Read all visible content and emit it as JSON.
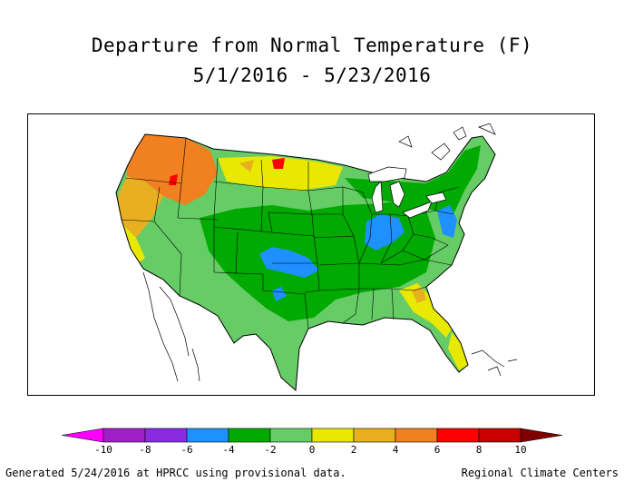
{
  "title": {
    "line1": "Departure from Normal Temperature (F)",
    "line2": "5/1/2016 - 5/23/2016"
  },
  "legend": {
    "bins": [
      {
        "from": -12,
        "to": -10,
        "color": "#ff00ff"
      },
      {
        "from": -10,
        "to": -8,
        "color": "#a020c8"
      },
      {
        "from": -8,
        "to": -6,
        "color": "#8a2be2"
      },
      {
        "from": -6,
        "to": -4,
        "color": "#1e90ff"
      },
      {
        "from": -4,
        "to": -2,
        "color": "#00aa00"
      },
      {
        "from": -2,
        "to": 0,
        "color": "#66cc66"
      },
      {
        "from": 0,
        "to": 2,
        "color": "#e8e800"
      },
      {
        "from": 2,
        "to": 4,
        "color": "#e8b020"
      },
      {
        "from": 4,
        "to": 6,
        "color": "#f08020"
      },
      {
        "from": 6,
        "to": 8,
        "color": "#ff0000"
      },
      {
        "from": 8,
        "to": 10,
        "color": "#c80000"
      },
      {
        "from": 10,
        "to": 12,
        "color": "#800000"
      }
    ],
    "tick_labels": [
      "-10",
      "-8",
      "-6",
      "-4",
      "-2",
      "0",
      "2",
      "4",
      "6",
      "8",
      "10"
    ]
  },
  "footer": {
    "left": "Generated 5/24/2016 at HPRCC using provisional data.",
    "right": "Regional Climate Centers"
  }
}
